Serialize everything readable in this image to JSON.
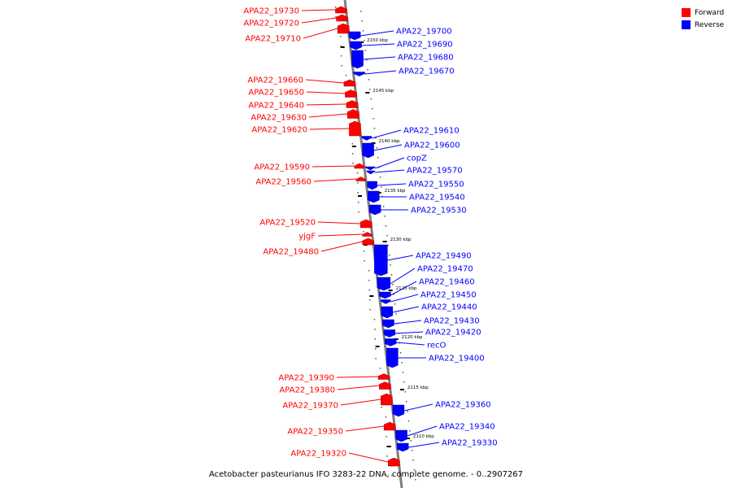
{
  "legend": {
    "forward_label": "Forward",
    "reverse_label": "Reverse",
    "forward_color": "#ff0000",
    "reverse_color": "#0000ff"
  },
  "caption": "Acetobacter pasteurianus IFO 3283-22 DNA, complete genome. - 0..2907267",
  "ticks": [
    "2150 kbp",
    "2145 kbp",
    "2140 kbp",
    "2135 kbp",
    "2130 kbp",
    "2125 kbp",
    "2120 kbp",
    "2115 kbp",
    "2110 kbp"
  ],
  "forward_genes": [
    "APA22_19730",
    "APA22_19720",
    "APA22_19710",
    "APA22_19660",
    "APA22_19650",
    "APA22_19640",
    "APA22_19630",
    "APA22_19620",
    "APA22_19590",
    "APA22_19560",
    "APA22_19520",
    "yjgF",
    "APA22_19480",
    "APA22_19390",
    "APA22_19380",
    "APA22_19370",
    "APA22_19350",
    "APA22_19320"
  ],
  "reverse_genes": [
    "APA22_19700",
    "APA22_19690",
    "APA22_19680",
    "APA22_19670",
    "APA22_19610",
    "APA22_19600",
    "copZ",
    "APA22_19570",
    "APA22_19550",
    "APA22_19540",
    "APA22_19530",
    "APA22_19490",
    "APA22_19470",
    "APA22_19460",
    "APA22_19450",
    "APA22_19440",
    "APA22_19430",
    "APA22_19420",
    "recO",
    "APA22_19400",
    "APA22_19360",
    "APA22_19340",
    "APA22_19330"
  ]
}
